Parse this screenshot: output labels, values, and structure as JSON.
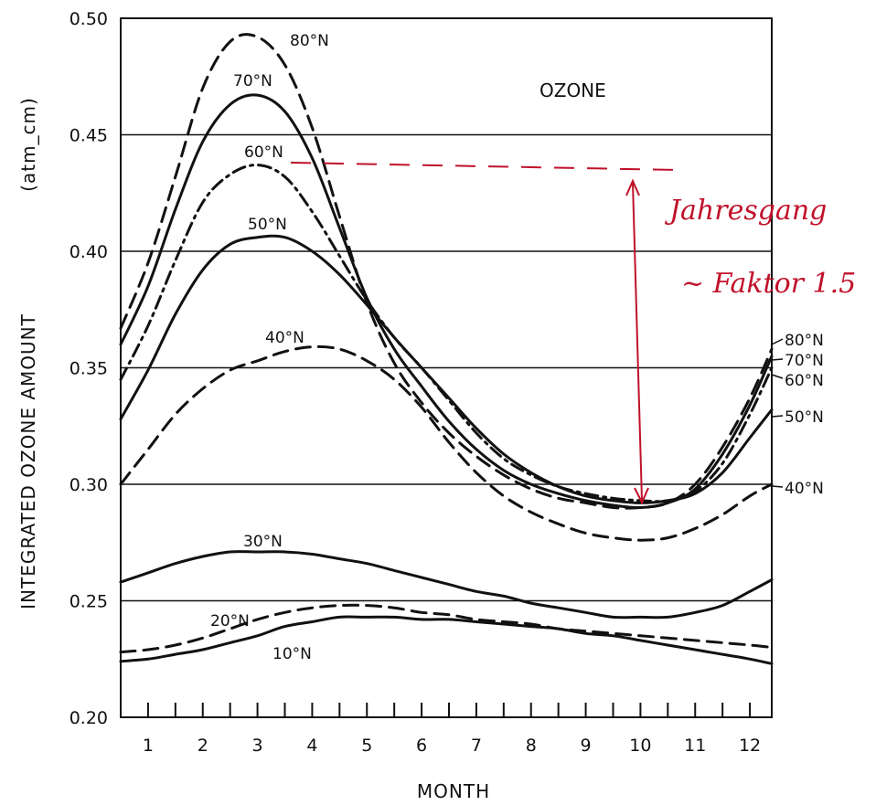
{
  "chart_data": {
    "type": "line",
    "title": "OZONE",
    "xlabel": "MONTH",
    "ylabel": "INTEGRATED OZONE AMOUNT",
    "ylabel_unit": "(atm_cm)",
    "xlim": [
      0.5,
      12.4
    ],
    "ylim": [
      0.2,
      0.5
    ],
    "x_ticks": [
      "1",
      "2",
      "3",
      "4",
      "5",
      "6",
      "7",
      "8",
      "9",
      "10",
      "11",
      "12"
    ],
    "y_ticks": [
      "0.20",
      "0.25",
      "0.30",
      "0.35",
      "0.40",
      "0.45",
      "0.50"
    ],
    "grid": "horizontal",
    "x": [
      0.5,
      1,
      1.5,
      2,
      2.5,
      3,
      3.5,
      4,
      4.5,
      5,
      5.5,
      6,
      6.5,
      7,
      7.5,
      8,
      8.5,
      9,
      9.5,
      10,
      10.5,
      11,
      11.5,
      12,
      12.4
    ],
    "series": [
      {
        "name": "80°N",
        "dash": "long",
        "values": [
          0.367,
          0.395,
          0.432,
          0.47,
          0.49,
          0.492,
          0.48,
          0.453,
          0.415,
          0.378,
          0.352,
          0.335,
          0.322,
          0.312,
          0.304,
          0.298,
          0.294,
          0.292,
          0.29,
          0.29,
          0.292,
          0.3,
          0.316,
          0.337,
          0.358
        ]
      },
      {
        "name": "70°N",
        "dash": "solid",
        "values": [
          0.36,
          0.385,
          0.418,
          0.447,
          0.463,
          0.467,
          0.46,
          0.44,
          0.41,
          0.38,
          0.358,
          0.342,
          0.327,
          0.315,
          0.306,
          0.3,
          0.296,
          0.293,
          0.291,
          0.29,
          0.292,
          0.298,
          0.313,
          0.334,
          0.355
        ]
      },
      {
        "name": "60°N",
        "dash": "dashdot",
        "values": [
          0.345,
          0.368,
          0.396,
          0.421,
          0.433,
          0.437,
          0.432,
          0.417,
          0.398,
          0.379,
          0.363,
          0.35,
          0.336,
          0.322,
          0.311,
          0.304,
          0.299,
          0.296,
          0.294,
          0.293,
          0.293,
          0.297,
          0.309,
          0.33,
          0.35
        ]
      },
      {
        "name": "50°N",
        "dash": "solid",
        "values": [
          0.328,
          0.349,
          0.373,
          0.392,
          0.403,
          0.406,
          0.406,
          0.4,
          0.39,
          0.377,
          0.363,
          0.35,
          0.337,
          0.324,
          0.313,
          0.305,
          0.299,
          0.295,
          0.293,
          0.292,
          0.293,
          0.296,
          0.305,
          0.32,
          0.332
        ]
      },
      {
        "name": "40°N",
        "dash": "long",
        "values": [
          0.3,
          0.315,
          0.33,
          0.341,
          0.349,
          0.353,
          0.357,
          0.359,
          0.358,
          0.353,
          0.345,
          0.333,
          0.318,
          0.305,
          0.295,
          0.288,
          0.283,
          0.279,
          0.277,
          0.276,
          0.277,
          0.281,
          0.287,
          0.295,
          0.3
        ]
      },
      {
        "name": "30°N",
        "dash": "solid",
        "values": [
          0.258,
          0.262,
          0.266,
          0.269,
          0.271,
          0.271,
          0.271,
          0.27,
          0.268,
          0.266,
          0.263,
          0.26,
          0.257,
          0.254,
          0.252,
          0.249,
          0.247,
          0.245,
          0.243,
          0.243,
          0.243,
          0.245,
          0.248,
          0.254,
          0.259
        ]
      },
      {
        "name": "20°N",
        "dash": "long",
        "values": [
          0.228,
          0.229,
          0.231,
          0.234,
          0.238,
          0.242,
          0.245,
          0.247,
          0.248,
          0.248,
          0.247,
          0.245,
          0.244,
          0.242,
          0.241,
          0.24,
          0.238,
          0.237,
          0.236,
          0.235,
          0.234,
          0.233,
          0.232,
          0.231,
          0.23
        ]
      },
      {
        "name": "10°N",
        "dash": "solid",
        "values": [
          0.224,
          0.225,
          0.227,
          0.229,
          0.232,
          0.235,
          0.239,
          0.241,
          0.243,
          0.243,
          0.243,
          0.242,
          0.242,
          0.241,
          0.24,
          0.239,
          0.238,
          0.236,
          0.235,
          0.233,
          0.231,
          0.229,
          0.227,
          0.225,
          0.223
        ]
      }
    ],
    "annotations": {
      "note_line1": "Jahresgang",
      "note_line2": "~ Faktor 1.5"
    }
  }
}
